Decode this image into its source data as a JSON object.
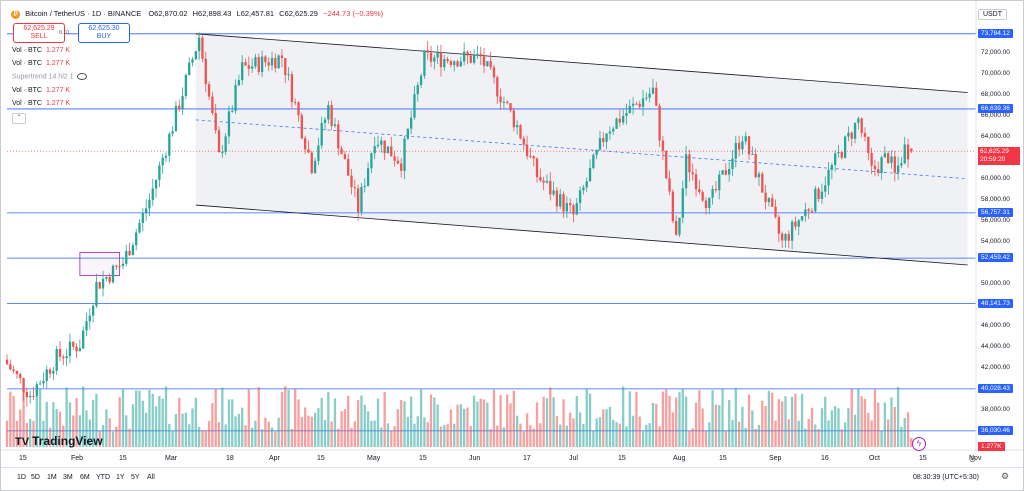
{
  "header": {
    "symbol": "Bitcoin / TetherUS · 1D · BINANCE",
    "open": "O62,870.02",
    "high": "H62,898.43",
    "low": "L62,457.81",
    "close": "C62,625.29",
    "change": "−244.73 (−0.39%)"
  },
  "trade": {
    "sell_price": "62,625.29",
    "sell_label": "SELL",
    "spread": "0.01",
    "buy_price": "62,625.30",
    "buy_label": "BUY"
  },
  "indicators": [
    {
      "name": "Vol · BTC",
      "value": "1.277 K"
    },
    {
      "name": "Vol · BTC",
      "value": "1.277 K"
    },
    {
      "name": "Supertrend 14 hl2 1",
      "value": ""
    },
    {
      "name": "Vol · BTC",
      "value": "1.277 K"
    },
    {
      "name": "Vol · BTC",
      "value": "1.277 K"
    }
  ],
  "currency": "USDT",
  "price_axis": {
    "ticks": [
      72000,
      70000,
      68000,
      66000,
      64000,
      60000,
      58000,
      56000,
      54000,
      50000,
      46000,
      44000,
      42000,
      38000
    ],
    "tick_labels": [
      "72,000.00",
      "70,000.00",
      "68,000.00",
      "66,000.00",
      "64,000.00",
      "60,000.00",
      "58,000.00",
      "56,000.00",
      "54,000.00",
      "50,000.00",
      "46,000.00",
      "44,000.00",
      "42,000.00",
      "38,000.00"
    ],
    "current_price": "62,625.29",
    "countdown": "20:59:20",
    "volume_label": "1.277K"
  },
  "horizontal_levels": [
    {
      "value": 73784.12,
      "label": "73,784.12"
    },
    {
      "value": 66639.36,
      "label": "66,639.36"
    },
    {
      "value": 56757.31,
      "label": "56,757.31"
    },
    {
      "value": 52459.42,
      "label": "52,459.42"
    },
    {
      "value": 48141.73,
      "label": "48,141.73"
    },
    {
      "value": 40028.43,
      "label": "40,028.43"
    },
    {
      "value": 36030.46,
      "label": "36,030.46"
    }
  ],
  "time_axis": {
    "labels": [
      "15",
      "Feb",
      "15",
      "Mar",
      "18",
      "Apr",
      "15",
      "May",
      "15",
      "Jun",
      "17",
      "Jul",
      "15",
      "Aug",
      "15",
      "Sep",
      "16",
      "Oct",
      "15",
      "Nov"
    ]
  },
  "bottom_bar": {
    "ranges": [
      "1D",
      "5D",
      "1M",
      "3M",
      "6M",
      "YTD",
      "1Y",
      "5Y",
      "All"
    ],
    "clock": "08:30:39 (UTC+5:30)"
  },
  "branding": "TradingView",
  "colors": {
    "up": "#26a69a",
    "down": "#ef5350",
    "level_line": "#2962ff",
    "channel": "#000000",
    "price_line": "#f23645"
  },
  "chart_data": {
    "type": "candlestick",
    "symbol": "BTCUSDT",
    "interval": "1D",
    "y_range": [
      34500,
      75000
    ],
    "x_range": [
      "2024-01-15",
      "2024-11-01"
    ],
    "channel": {
      "upper": [
        {
          "date": "2024-03-12",
          "price": 73784
        },
        {
          "date": "2024-10-31",
          "price": 68200
        }
      ],
      "lower": [
        {
          "date": "2024-03-12",
          "price": 57500
        },
        {
          "date": "2024-10-31",
          "price": 51800
        }
      ],
      "mid": [
        {
          "date": "2024-03-12",
          "price": 65600
        },
        {
          "date": "2024-10-31",
          "price": 60000
        }
      ]
    },
    "highlight_box": {
      "from": "2024-02-06",
      "to": "2024-02-18",
      "low": 50800,
      "high": 53000
    },
    "last_close": 62625.29,
    "last_volume_k": 1.277,
    "anchors": [
      [
        "2024-01-15",
        42800
      ],
      [
        "2024-01-23",
        39500
      ],
      [
        "2024-01-31",
        43000
      ],
      [
        "2024-02-07",
        44300
      ],
      [
        "2024-02-12",
        49900
      ],
      [
        "2024-02-20",
        52000
      ],
      [
        "2024-02-28",
        58000
      ],
      [
        "2024-03-05",
        64000
      ],
      [
        "2024-03-14",
        73500
      ],
      [
        "2024-03-20",
        62000
      ],
      [
        "2024-03-27",
        70500
      ],
      [
        "2024-04-08",
        71600
      ],
      [
        "2024-04-17",
        61300
      ],
      [
        "2024-04-22",
        66800
      ],
      [
        "2024-05-01",
        57200
      ],
      [
        "2024-05-06",
        64000
      ],
      [
        "2024-05-14",
        61600
      ],
      [
        "2024-05-21",
        71400
      ],
      [
        "2024-06-07",
        71500
      ],
      [
        "2024-06-18",
        65000
      ],
      [
        "2024-06-24",
        60300
      ],
      [
        "2024-07-05",
        56500
      ],
      [
        "2024-07-15",
        64700
      ],
      [
        "2024-07-29",
        68400
      ],
      [
        "2024-08-05",
        54000
      ],
      [
        "2024-08-08",
        61700
      ],
      [
        "2024-08-15",
        57500
      ],
      [
        "2024-08-25",
        64200
      ],
      [
        "2024-09-06",
        53900
      ],
      [
        "2024-09-16",
        58200
      ],
      [
        "2024-09-29",
        65600
      ],
      [
        "2024-10-03",
        60700
      ],
      [
        "2024-10-08",
        62200
      ],
      [
        "2024-10-10",
        60300
      ],
      [
        "2024-10-13",
        62900
      ],
      [
        "2024-10-14",
        62625
      ]
    ]
  }
}
